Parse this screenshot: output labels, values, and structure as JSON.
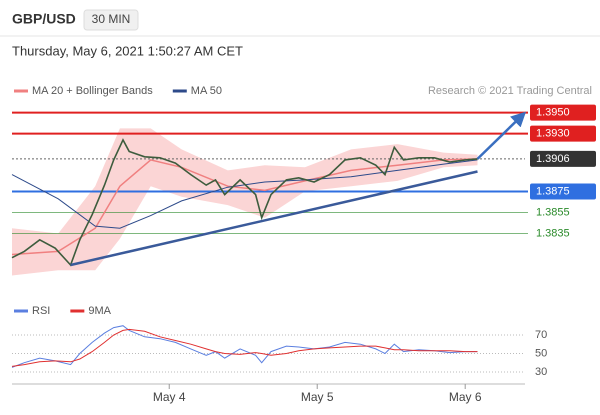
{
  "header": {
    "symbol": "GBP/USD",
    "interval": "30 MIN",
    "datetime": "Thursday, May 6, 2021 1:50:27 AM CET",
    "credit": "Research © 2021 Trading Central"
  },
  "chart_data": [
    {
      "type": "price",
      "xlim": [
        0,
        166.4
      ],
      "ylim": [
        1.3786,
        1.3962
      ],
      "price": {
        "color": "#3d5c3d",
        "x": [
          0,
          4,
          9,
          14,
          19,
          22,
          26,
          30,
          33,
          36,
          38,
          43,
          48,
          53,
          58,
          63,
          66,
          69,
          74,
          79,
          81,
          84,
          89,
          93,
          98,
          103,
          108,
          113,
          118,
          121,
          124,
          127,
          132,
          137,
          142,
          147,
          151
        ],
        "values": [
          1.3812,
          1.3818,
          1.3829,
          1.3821,
          1.3805,
          1.3829,
          1.3853,
          1.3881,
          1.3905,
          1.3924,
          1.3913,
          1.3908,
          1.3907,
          1.3902,
          1.3891,
          1.3881,
          1.3886,
          1.3872,
          1.3886,
          1.3872,
          1.385,
          1.3872,
          1.3886,
          1.3888,
          1.3884,
          1.3891,
          1.3905,
          1.3907,
          1.39,
          1.3891,
          1.3917,
          1.3905,
          1.3907,
          1.3907,
          1.3903,
          1.3905,
          1.3906
        ]
      },
      "series": [
        {
          "name": "MA 20 + Bollinger Bands",
          "color": "#f08080",
          "band_color": "#fbd5d5",
          "x": [
            0,
            15,
            27,
            35,
            45,
            55,
            70,
            82,
            95,
            110,
            125,
            140,
            151
          ],
          "values": [
            1.3815,
            1.3818,
            1.384,
            1.388,
            1.3905,
            1.3898,
            1.388,
            1.3876,
            1.3885,
            1.3895,
            1.39,
            1.3905,
            1.3906
          ],
          "upper": [
            1.384,
            1.3835,
            1.388,
            1.3935,
            1.3935,
            1.3915,
            1.3895,
            1.39,
            1.3898,
            1.3915,
            1.392,
            1.3912,
            1.391
          ],
          "lower": [
            1.3795,
            1.38,
            1.38,
            1.383,
            1.388,
            1.387,
            1.3862,
            1.385,
            1.3875,
            1.388,
            1.3885,
            1.3898,
            1.39
          ]
        },
        {
          "name": "MA 50",
          "color": "#2d4a8a",
          "x": [
            0,
            15,
            27,
            35,
            45,
            55,
            70,
            82,
            95,
            110,
            125,
            140,
            151
          ],
          "values": [
            1.3891,
            1.3868,
            1.3842,
            1.384,
            1.3852,
            1.3866,
            1.3879,
            1.3884,
            1.3886,
            1.3889,
            1.3895,
            1.3901,
            1.3905
          ]
        }
      ],
      "trendlines": [
        {
          "color": "#3a5a9a",
          "x": [
            19,
            151
          ],
          "values": [
            1.3805,
            1.3894
          ]
        },
        {
          "color": "#3a6fc0",
          "arrow": true,
          "x": [
            151,
            165
          ],
          "values": [
            1.3906,
            1.3946
          ]
        }
      ],
      "levels": [
        {
          "value": 1.395,
          "label": "1.3950",
          "color": "#e02020",
          "box": true
        },
        {
          "value": 1.393,
          "label": "1.3930",
          "color": "#e02020",
          "box": true
        },
        {
          "value": 1.3906,
          "label": "1.3906",
          "color": "#333333",
          "box": true,
          "dashed": true
        },
        {
          "value": 1.3875,
          "label": "1.3875",
          "color": "#2f6fe0",
          "box": true
        },
        {
          "value": 1.3855,
          "label": "1.3855",
          "color": "#2a8a2a",
          "box": false
        },
        {
          "value": 1.3835,
          "label": "1.3835",
          "color": "#2a8a2a",
          "box": false
        }
      ]
    },
    {
      "type": "line",
      "xlim": [
        0,
        166.4
      ],
      "ylim": [
        25,
        90
      ],
      "yticks": [
        70,
        50,
        30
      ],
      "xticks": [
        {
          "value": 51,
          "label": "May 4"
        },
        {
          "value": 99,
          "label": "May 5"
        },
        {
          "value": 147,
          "label": "May 6"
        }
      ],
      "series": [
        {
          "name": "RSI",
          "color": "#5b7fe0",
          "x": [
            0,
            4,
            9,
            14,
            19,
            22,
            26,
            30,
            33,
            36,
            38,
            43,
            48,
            53,
            58,
            63,
            66,
            69,
            74,
            79,
            81,
            84,
            89,
            93,
            98,
            103,
            108,
            113,
            118,
            121,
            124,
            127,
            132,
            137,
            142,
            147,
            151
          ],
          "values": [
            35,
            40,
            45,
            42,
            38,
            50,
            62,
            72,
            78,
            80,
            75,
            68,
            66,
            62,
            55,
            48,
            52,
            45,
            55,
            48,
            40,
            52,
            58,
            57,
            55,
            57,
            62,
            60,
            55,
            50,
            60,
            52,
            54,
            53,
            51,
            52,
            52
          ]
        },
        {
          "name": "9MA",
          "color": "#e03030",
          "x": [
            0,
            4,
            9,
            14,
            19,
            22,
            26,
            30,
            33,
            36,
            38,
            43,
            48,
            53,
            58,
            63,
            66,
            69,
            74,
            79,
            81,
            84,
            89,
            93,
            98,
            103,
            108,
            113,
            118,
            121,
            124,
            127,
            132,
            137,
            142,
            147,
            151
          ],
          "values": [
            36,
            38,
            41,
            42,
            41,
            44,
            52,
            62,
            70,
            75,
            76,
            74,
            68,
            64,
            60,
            55,
            52,
            50,
            49,
            51,
            50,
            48,
            50,
            53,
            55,
            56,
            57,
            58,
            58,
            56,
            54,
            54,
            53,
            53,
            53,
            52,
            52
          ]
        }
      ]
    }
  ]
}
